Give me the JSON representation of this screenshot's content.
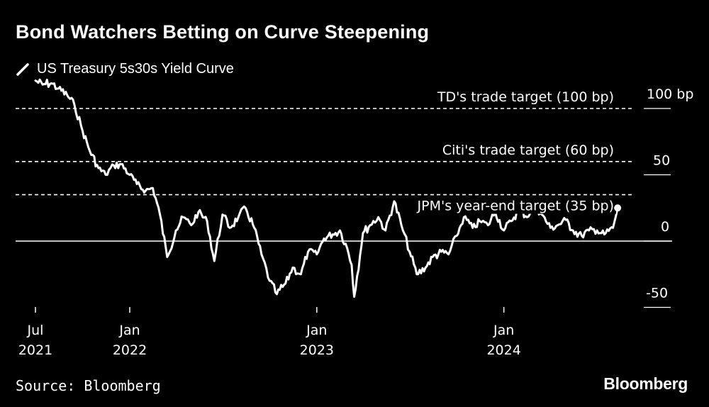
{
  "title": "Bond Watchers Betting on Curve Steepening",
  "legend_label": "US Treasury 5s30s Yield Curve",
  "source": "Source: Bloomberg",
  "brand": "Bloomberg",
  "colors": {
    "background": "#000000",
    "line": "#ffffff",
    "axis_rule": "#ffffff"
  },
  "chart_data": {
    "type": "line",
    "title": "Bond Watchers Betting on Curve Steepening",
    "series": [
      {
        "name": "US Treasury 5s30s Yield Curve",
        "unit": "bp",
        "x": [
          "2021-07-01",
          "2021-07-15",
          "2021-08-01",
          "2021-08-15",
          "2021-09-01",
          "2021-09-15",
          "2021-10-01",
          "2021-10-15",
          "2021-11-01",
          "2021-11-15",
          "2021-12-01",
          "2021-12-15",
          "2022-01-01",
          "2022-01-15",
          "2022-02-01",
          "2022-02-15",
          "2022-03-01",
          "2022-03-15",
          "2022-04-01",
          "2022-04-15",
          "2022-05-01",
          "2022-05-15",
          "2022-06-01",
          "2022-06-15",
          "2022-07-01",
          "2022-07-15",
          "2022-08-01",
          "2022-08-15",
          "2022-09-01",
          "2022-09-15",
          "2022-10-01",
          "2022-10-15",
          "2022-11-01",
          "2022-11-15",
          "2022-12-01",
          "2022-12-15",
          "2023-01-01",
          "2023-01-15",
          "2023-02-01",
          "2023-02-15",
          "2023-03-01",
          "2023-03-10",
          "2023-03-15",
          "2023-04-01",
          "2023-04-15",
          "2023-05-01",
          "2023-05-15",
          "2023-06-01",
          "2023-06-15",
          "2023-07-01",
          "2023-07-15",
          "2023-08-01",
          "2023-08-15",
          "2023-09-01",
          "2023-09-15",
          "2023-10-01",
          "2023-10-15",
          "2023-11-01",
          "2023-11-15",
          "2023-12-01",
          "2023-12-15",
          "2024-01-01",
          "2024-01-15",
          "2024-02-01",
          "2024-02-15",
          "2024-03-01",
          "2024-03-15",
          "2024-04-01",
          "2024-04-15",
          "2024-05-01",
          "2024-05-15",
          "2024-06-01",
          "2024-06-15",
          "2024-07-01",
          "2024-07-15",
          "2024-08-01",
          "2024-08-10"
        ],
        "values": [
          121,
          118,
          119,
          115,
          110,
          103,
          83,
          68,
          55,
          50,
          57,
          58,
          50,
          43,
          38,
          40,
          20,
          -12,
          8,
          18,
          12,
          22,
          15,
          -15,
          20,
          10,
          18,
          25,
          10,
          -10,
          -30,
          -40,
          -32,
          -20,
          -25,
          -8,
          -10,
          2,
          5,
          8,
          -5,
          -18,
          -42,
          6,
          12,
          18,
          8,
          30,
          12,
          -8,
          -25,
          -20,
          -12,
          -8,
          -10,
          4,
          18,
          10,
          15,
          12,
          22,
          8,
          15,
          25,
          18,
          28,
          20,
          10,
          12,
          16,
          8,
          4,
          8,
          8,
          5,
          10,
          25
        ]
      }
    ],
    "reference_lines": [
      {
        "label": "TD's trade target (100 bp)",
        "value": 100,
        "style": "dashed"
      },
      {
        "label": "Citi's trade target (60 bp)",
        "value": 60,
        "style": "dashed"
      },
      {
        "label": "JPM's year-end target (35 bp)",
        "value": 35,
        "style": "dashed"
      }
    ],
    "y_ticks": [
      {
        "value": 100,
        "label": "100 bp"
      },
      {
        "value": 50,
        "label": "50"
      },
      {
        "value": 0,
        "label": "0"
      },
      {
        "value": -50,
        "label": "-50"
      }
    ],
    "x_ticks": [
      {
        "date": "2021-07-01",
        "line1": "Jul",
        "line2": "2021"
      },
      {
        "date": "2022-01-01",
        "line1": "Jan",
        "line2": "2022"
      },
      {
        "date": "2023-01-01",
        "line1": "Jan",
        "line2": "2023"
      },
      {
        "date": "2024-01-01",
        "line1": "Jan",
        "line2": "2024"
      }
    ],
    "ylim": [
      -60,
      125
    ],
    "xlim": [
      "2021-07-01",
      "2024-09-01"
    ],
    "grid": false,
    "xlabel": "",
    "ylabel": "",
    "legend_position": "top-left"
  }
}
